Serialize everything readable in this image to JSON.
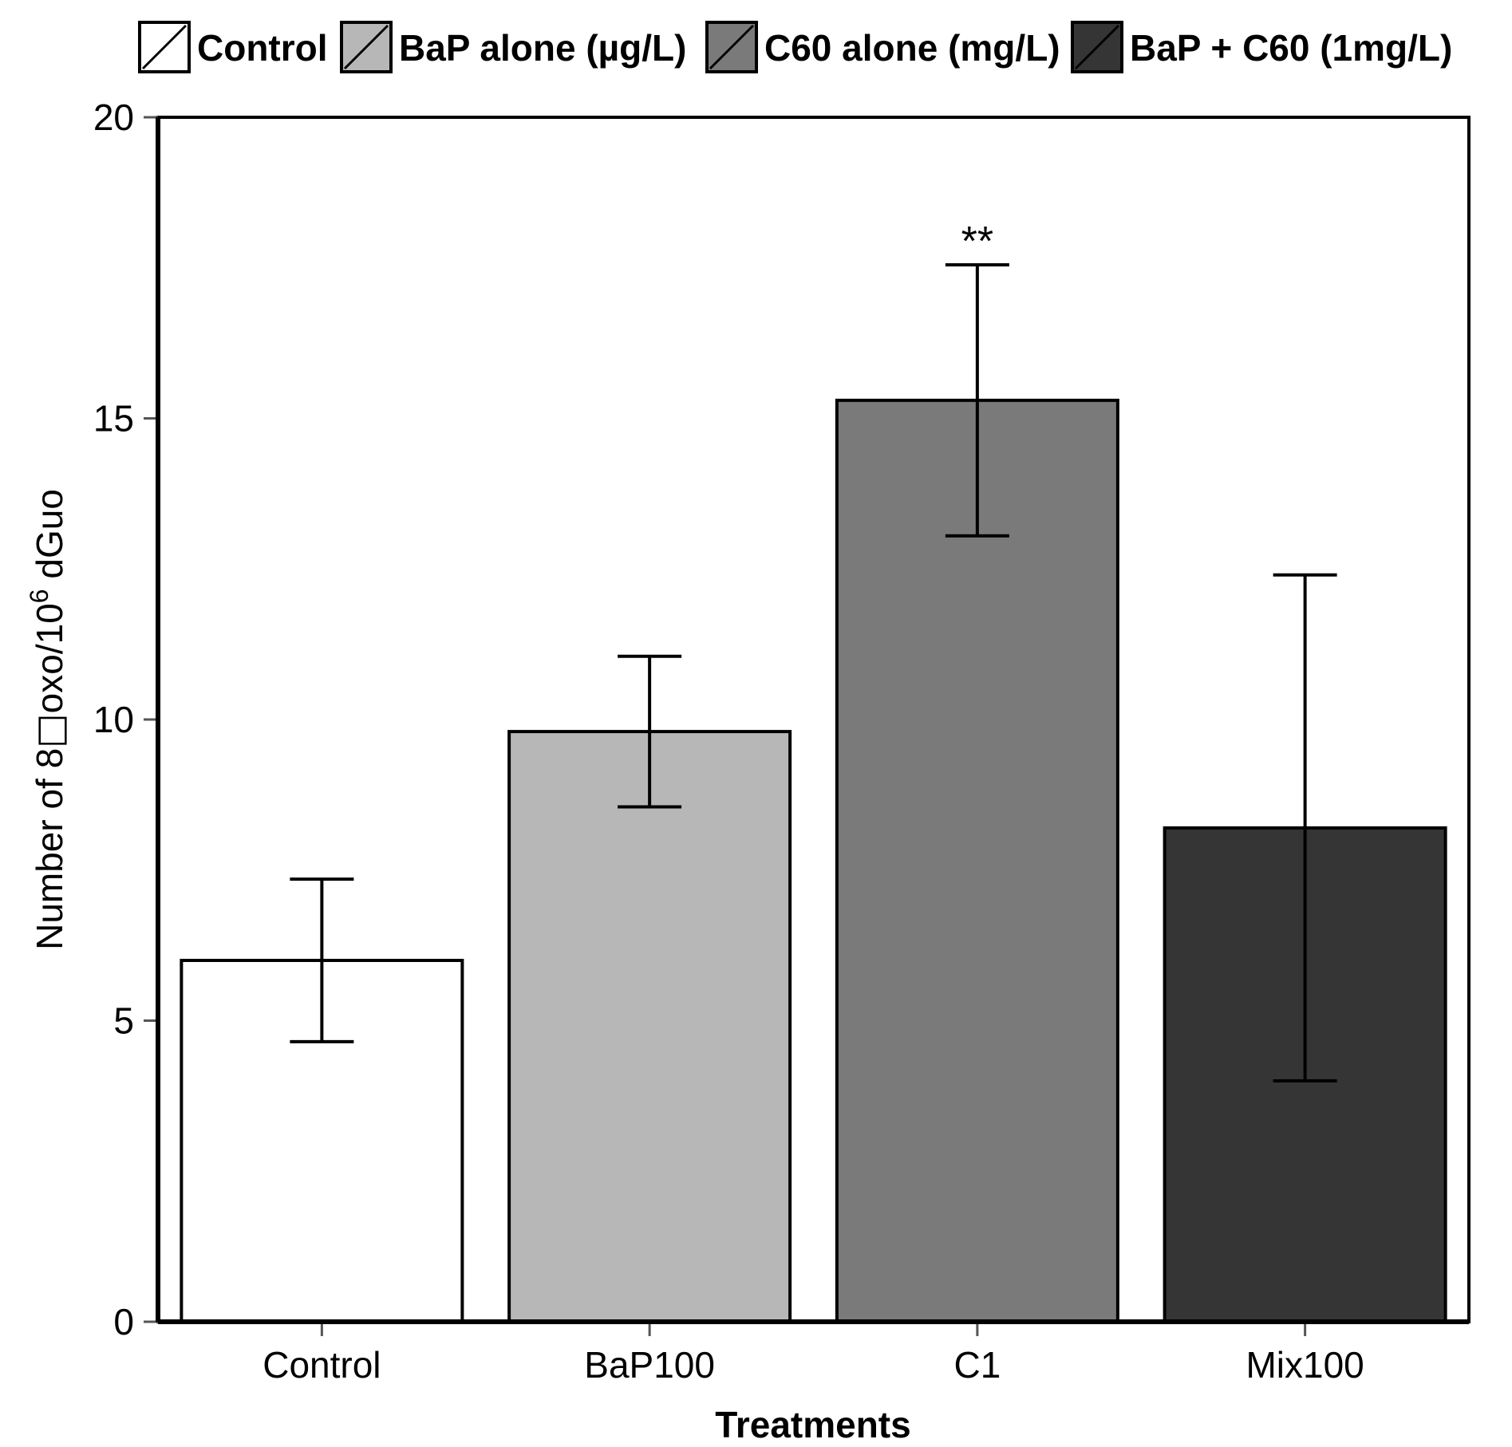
{
  "chart_data": {
    "type": "bar",
    "title": "",
    "xlabel": "Treatments",
    "ylabel_parts": {
      "before": "Number of 8",
      "glyph": "□",
      "middle": "oxo/10",
      "sup": "6",
      "after": " dGuo"
    },
    "ylim": [
      0,
      20
    ],
    "yticks": [
      "0",
      "5",
      "10",
      "15",
      "20"
    ],
    "categories": [
      "Control",
      "BaP100",
      "C1",
      "Mix100"
    ],
    "values": [
      6.0,
      9.8,
      15.3,
      8.2
    ],
    "errors": [
      1.35,
      1.25,
      2.25,
      4.2
    ],
    "bar_colors": [
      "#ffffff",
      "#b7b7b7",
      "#7a7a7a",
      "#353535"
    ],
    "significance": [
      "",
      "",
      "**",
      ""
    ],
    "legend": [
      {
        "label": "Control",
        "color": "#ffffff"
      },
      {
        "label": "BaP alone (µg/L)",
        "color": "#b7b7b7"
      },
      {
        "label": "C60 alone (mg/L)",
        "color": "#7a7a7a"
      },
      {
        "label": "BaP + C60 (1mg/L)",
        "color": "#353535"
      }
    ],
    "legend_position": "top"
  }
}
